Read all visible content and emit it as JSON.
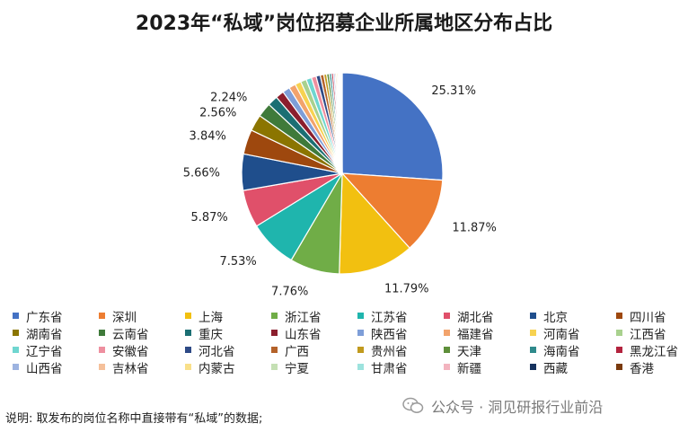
{
  "chart_data": {
    "type": "pie",
    "title": "2023年“私域”岗位招募企业所属地区分布占比",
    "slices": [
      {
        "label": "广东省",
        "value": 25.31,
        "color": "#4472C4"
      },
      {
        "label": "深圳",
        "value": 11.87,
        "color": "#ED7D31"
      },
      {
        "label": "上海",
        "value": 11.79,
        "color": "#F2C010"
      },
      {
        "label": "浙江省",
        "value": 7.76,
        "color": "#70AD47"
      },
      {
        "label": "江苏省",
        "value": 7.53,
        "color": "#1FB5AD"
      },
      {
        "label": "湖北省",
        "value": 5.87,
        "color": "#E0506A"
      },
      {
        "label": "北京",
        "value": 5.66,
        "color": "#1F4E8C"
      },
      {
        "label": "四川省",
        "value": 3.84,
        "color": "#9E480E"
      },
      {
        "label": "湖南省",
        "value": 2.56,
        "color": "#8B7500"
      },
      {
        "label": "云南省",
        "value": 2.24,
        "color": "#3F7A3A"
      },
      {
        "label": "重庆",
        "value": 1.6,
        "color": "#1B6F73"
      },
      {
        "label": "山东省",
        "value": 1.3,
        "color": "#8B1E2D"
      },
      {
        "label": "陕西省",
        "value": 1.15,
        "color": "#7E9ED8"
      },
      {
        "label": "福建省",
        "value": 1.05,
        "color": "#F2A36C"
      },
      {
        "label": "河南省",
        "value": 0.95,
        "color": "#F7D251"
      },
      {
        "label": "江西省",
        "value": 0.9,
        "color": "#A9D18E"
      },
      {
        "label": "辽宁省",
        "value": 0.85,
        "color": "#6FD6D0"
      },
      {
        "label": "安徽省",
        "value": 0.75,
        "color": "#EE8F9F"
      },
      {
        "label": "河北省",
        "value": 0.65,
        "color": "#2E4A86"
      },
      {
        "label": "广西",
        "value": 0.55,
        "color": "#B4622A"
      },
      {
        "label": "贵州省",
        "value": 0.45,
        "color": "#C19A1E"
      },
      {
        "label": "天津",
        "value": 0.4,
        "color": "#5E8F3A"
      },
      {
        "label": "海南省",
        "value": 0.35,
        "color": "#2F8A8C"
      },
      {
        "label": "黑龙江省",
        "value": 0.3,
        "color": "#B3233E"
      },
      {
        "label": "山西省",
        "value": 0.25,
        "color": "#9DB3E0"
      },
      {
        "label": "吉林省",
        "value": 0.22,
        "color": "#F5C09A"
      },
      {
        "label": "内蒙古",
        "value": 0.2,
        "color": "#F9E08A"
      },
      {
        "label": "宁夏",
        "value": 0.18,
        "color": "#C5E0B4"
      },
      {
        "label": "甘肃省",
        "value": 0.16,
        "color": "#9DE3DE"
      },
      {
        "label": "新疆",
        "value": 0.13,
        "color": "#F3B4BF"
      },
      {
        "label": "西藏",
        "value": 0.12,
        "color": "#15325E"
      },
      {
        "label": "香港",
        "value": 0.1,
        "color": "#7A3A0D"
      }
    ],
    "data_labels": [
      "25.31%",
      "11.87%",
      "11.79%",
      "7.76%",
      "7.53%",
      "5.87%",
      "5.66%",
      "3.84%",
      "2.56%",
      "2.24%"
    ],
    "legend_position": "bottom"
  },
  "footer_note": "说明: 取发布的岗位名称中直接带有“私域”的数据;",
  "watermark": "公众号 · 洞见研报行业前沿"
}
